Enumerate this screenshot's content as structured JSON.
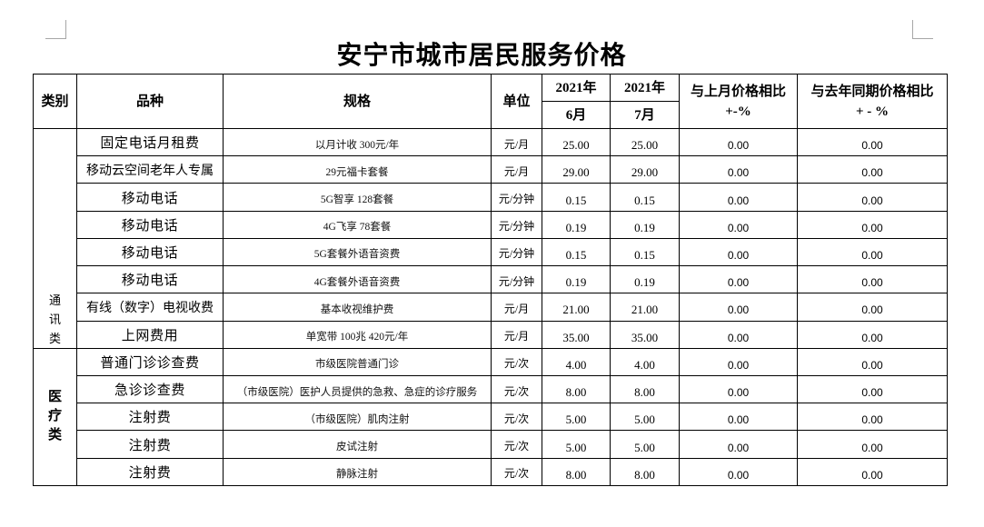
{
  "title": "安宁市城市居民服务价格",
  "table": {
    "headers": {
      "category": "类别",
      "item": "品种",
      "spec": "规格",
      "unit": "单位",
      "period_1": {
        "year": "2021年",
        "month": "6月"
      },
      "period_2": {
        "year": "2021年",
        "month": "7月"
      },
      "change_vs_last_month": {
        "label": "与上月价格相比",
        "unit": "+-%"
      },
      "change_vs_last_year": {
        "label": "与去年同期价格相比",
        "unit": "+ - %"
      }
    },
    "groups": [
      {
        "category": "通讯类",
        "rows": [
          {
            "item": "固定电话月租费",
            "spec": "以月计收 300元/年",
            "unit": "元/月",
            "price_2021_06": "25.00",
            "price_2021_07": "25.00",
            "change_vs_last_month": "0.00",
            "change_vs_last_year": "0.00"
          },
          {
            "item": "移动云空间老年人专属",
            "spec": "29元福卡套餐",
            "unit": "元/月",
            "price_2021_06": "29.00",
            "price_2021_07": "29.00",
            "change_vs_last_month": "0.00",
            "change_vs_last_year": "0.00"
          },
          {
            "item": "移动电话",
            "spec": "5G智享 128套餐",
            "unit": "元/分钟",
            "price_2021_06": "0.15",
            "price_2021_07": "0.15",
            "change_vs_last_month": "0.00",
            "change_vs_last_year": "0.00"
          },
          {
            "item": "移动电话",
            "spec": "4G飞享 78套餐",
            "unit": "元/分钟",
            "price_2021_06": "0.19",
            "price_2021_07": "0.19",
            "change_vs_last_month": "0.00",
            "change_vs_last_year": "0.00"
          },
          {
            "item": "移动电话",
            "spec": "5G套餐外语音资费",
            "unit": "元/分钟",
            "price_2021_06": "0.15",
            "price_2021_07": "0.15",
            "change_vs_last_month": "0.00",
            "change_vs_last_year": "0.00"
          },
          {
            "item": "移动电话",
            "spec": "4G套餐外语音资费",
            "unit": "元/分钟",
            "price_2021_06": "0.19",
            "price_2021_07": "0.19",
            "change_vs_last_month": "0.00",
            "change_vs_last_year": "0.00"
          },
          {
            "item": "有线（数字）电视收费",
            "spec": "基本收视维护费",
            "unit": "元/月",
            "price_2021_06": "21.00",
            "price_2021_07": "21.00",
            "change_vs_last_month": "0.00",
            "change_vs_last_year": "0.00"
          },
          {
            "item": "上网费用",
            "spec": "单宽带 100兆 420元/年",
            "unit": "元/月",
            "price_2021_06": "35.00",
            "price_2021_07": "35.00",
            "change_vs_last_month": "0.00",
            "change_vs_last_year": "0.00"
          }
        ]
      },
      {
        "category": "医疗类",
        "rows": [
          {
            "item": "普通门诊诊查费",
            "spec": "市级医院普通门诊",
            "unit": "元/次",
            "price_2021_06": "4.00",
            "price_2021_07": "4.00",
            "change_vs_last_month": "0.00",
            "change_vs_last_year": "0.00"
          },
          {
            "item": "急诊诊查费",
            "spec": "（市级医院）医护人员提供的急救、急症的诊疗服务",
            "unit": "元/次",
            "price_2021_06": "8.00",
            "price_2021_07": "8.00",
            "change_vs_last_month": "0.00",
            "change_vs_last_year": "0.00"
          },
          {
            "item": "注射费",
            "spec": "（市级医院）肌肉注射",
            "unit": "元/次",
            "price_2021_06": "5.00",
            "price_2021_07": "5.00",
            "change_vs_last_month": "0.00",
            "change_vs_last_year": "0.00"
          },
          {
            "item": "注射费",
            "spec": "皮试注射",
            "unit": "元/次",
            "price_2021_06": "5.00",
            "price_2021_07": "5.00",
            "change_vs_last_month": "0.00",
            "change_vs_last_year": "0.00"
          },
          {
            "item": "注射费",
            "spec": "静脉注射",
            "unit": "元/次",
            "price_2021_06": "8.00",
            "price_2021_07": "8.00",
            "change_vs_last_month": "0.00",
            "change_vs_last_year": "0.00"
          }
        ]
      }
    ]
  }
}
